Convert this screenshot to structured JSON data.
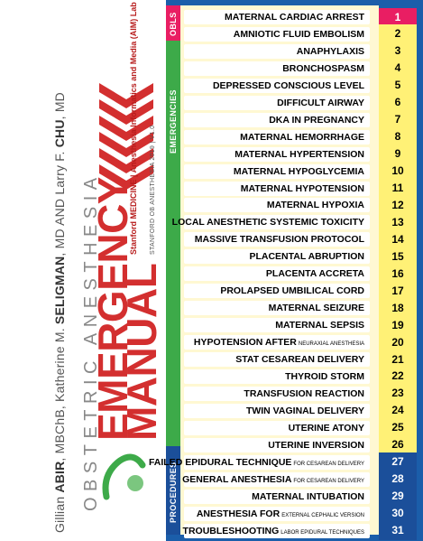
{
  "cover": {
    "authors_html_parts": [
      "Gillian ",
      "ABIR",
      ", MBChB, Katherine M. ",
      "SELIGMAN",
      ", MD AND Larry F. ",
      "CHU",
      ", MD"
    ],
    "series": "OBSTETRIC ANESTHESIA",
    "title_1": "EMERGENCY",
    "title_2": "MANUAL",
    "institution": "Stanford MEDICINE | Anesthesia Informatics and Media (AIM) Lab",
    "edition": "STANFORD OB ANESTHESIA 2019 | V1.0",
    "url": "ingnis.stanford.edu"
  },
  "sections": {
    "obls": "OBLS",
    "emergencies": "EMERGENCIES",
    "procedures": "PROCEDURES"
  },
  "items": [
    {
      "label": "MATERNAL CARDIAC ARREST",
      "sub": "",
      "num": "1",
      "section": "obls"
    },
    {
      "label": "AMNIOTIC FLUID EMBOLISM",
      "sub": "",
      "num": "2",
      "section": "em"
    },
    {
      "label": "ANAPHYLAXIS",
      "sub": "",
      "num": "3",
      "section": "em"
    },
    {
      "label": "BRONCHOSPASM",
      "sub": "",
      "num": "4",
      "section": "em"
    },
    {
      "label": "DEPRESSED CONSCIOUS LEVEL",
      "sub": "",
      "num": "5",
      "section": "em"
    },
    {
      "label": "DIFFICULT AIRWAY",
      "sub": "",
      "num": "6",
      "section": "em"
    },
    {
      "label": "DKA IN PREGNANCY",
      "sub": "",
      "num": "7",
      "section": "em"
    },
    {
      "label": "MATERNAL HEMORRHAGE",
      "sub": "",
      "num": "8",
      "section": "em"
    },
    {
      "label": "MATERNAL HYPERTENSION",
      "sub": "",
      "num": "9",
      "section": "em"
    },
    {
      "label": "MATERNAL HYPOGLYCEMIA",
      "sub": "",
      "num": "10",
      "section": "em"
    },
    {
      "label": "MATERNAL HYPOTENSION",
      "sub": "",
      "num": "11",
      "section": "em"
    },
    {
      "label": "MATERNAL HYPOXIA",
      "sub": "",
      "num": "12",
      "section": "em"
    },
    {
      "label": "LOCAL ANESTHETIC SYSTEMIC TOXICITY",
      "sub": "",
      "num": "13",
      "section": "em"
    },
    {
      "label": "MASSIVE TRANSFUSION PROTOCOL",
      "sub": "",
      "num": "14",
      "section": "em"
    },
    {
      "label": "PLACENTAL ABRUPTION",
      "sub": "",
      "num": "15",
      "section": "em"
    },
    {
      "label": "PLACENTA ACCRETA",
      "sub": "",
      "num": "16",
      "section": "em"
    },
    {
      "label": "PROLAPSED UMBILICAL CORD",
      "sub": "",
      "num": "17",
      "section": "em"
    },
    {
      "label": "MATERNAL SEIZURE",
      "sub": "",
      "num": "18",
      "section": "em"
    },
    {
      "label": "MATERNAL SEPSIS",
      "sub": "",
      "num": "19",
      "section": "em"
    },
    {
      "label": "HYPOTENSION AFTER",
      "sub": "NEURAXIAL ANESTHESIA",
      "num": "20",
      "section": "em"
    },
    {
      "label": "STAT CESAREAN DELIVERY",
      "sub": "",
      "num": "21",
      "section": "em"
    },
    {
      "label": "THYROID STORM",
      "sub": "",
      "num": "22",
      "section": "em"
    },
    {
      "label": "TRANSFUSION REACTION",
      "sub": "",
      "num": "23",
      "section": "em"
    },
    {
      "label": "TWIN VAGINAL DELIVERY",
      "sub": "",
      "num": "24",
      "section": "em"
    },
    {
      "label": "UTERINE ATONY",
      "sub": "",
      "num": "25",
      "section": "em"
    },
    {
      "label": "UTERINE INVERSION",
      "sub": "",
      "num": "26",
      "section": "em"
    },
    {
      "label": "FAILED EPIDURAL TECHNIQUE",
      "sub": "FOR CESAREAN DELIVERY",
      "num": "27",
      "section": "pr"
    },
    {
      "label": "GENERAL ANESTHESIA",
      "sub": "FOR CESAREAN DELIVERY",
      "num": "28",
      "section": "pr"
    },
    {
      "label": "MATERNAL INTUBATION",
      "sub": "",
      "num": "29",
      "section": "pr"
    },
    {
      "label": "ANESTHESIA FOR",
      "sub": "EXTERNAL CEPHALIC VERSION",
      "num": "30",
      "section": "pr"
    },
    {
      "label": "TROUBLESHOOTING",
      "sub": "LABOR EPIDURAL TECHNIQUES",
      "num": "31",
      "section": "pr"
    }
  ],
  "colors": {
    "obls": "#e91e63",
    "emergencies": "#3daa49",
    "procedures": "#1b4f9a",
    "accent": "#d32f2f"
  },
  "icons": {
    "cover": "red-chevrons-icon",
    "obls": "heart-pulse-icon"
  }
}
